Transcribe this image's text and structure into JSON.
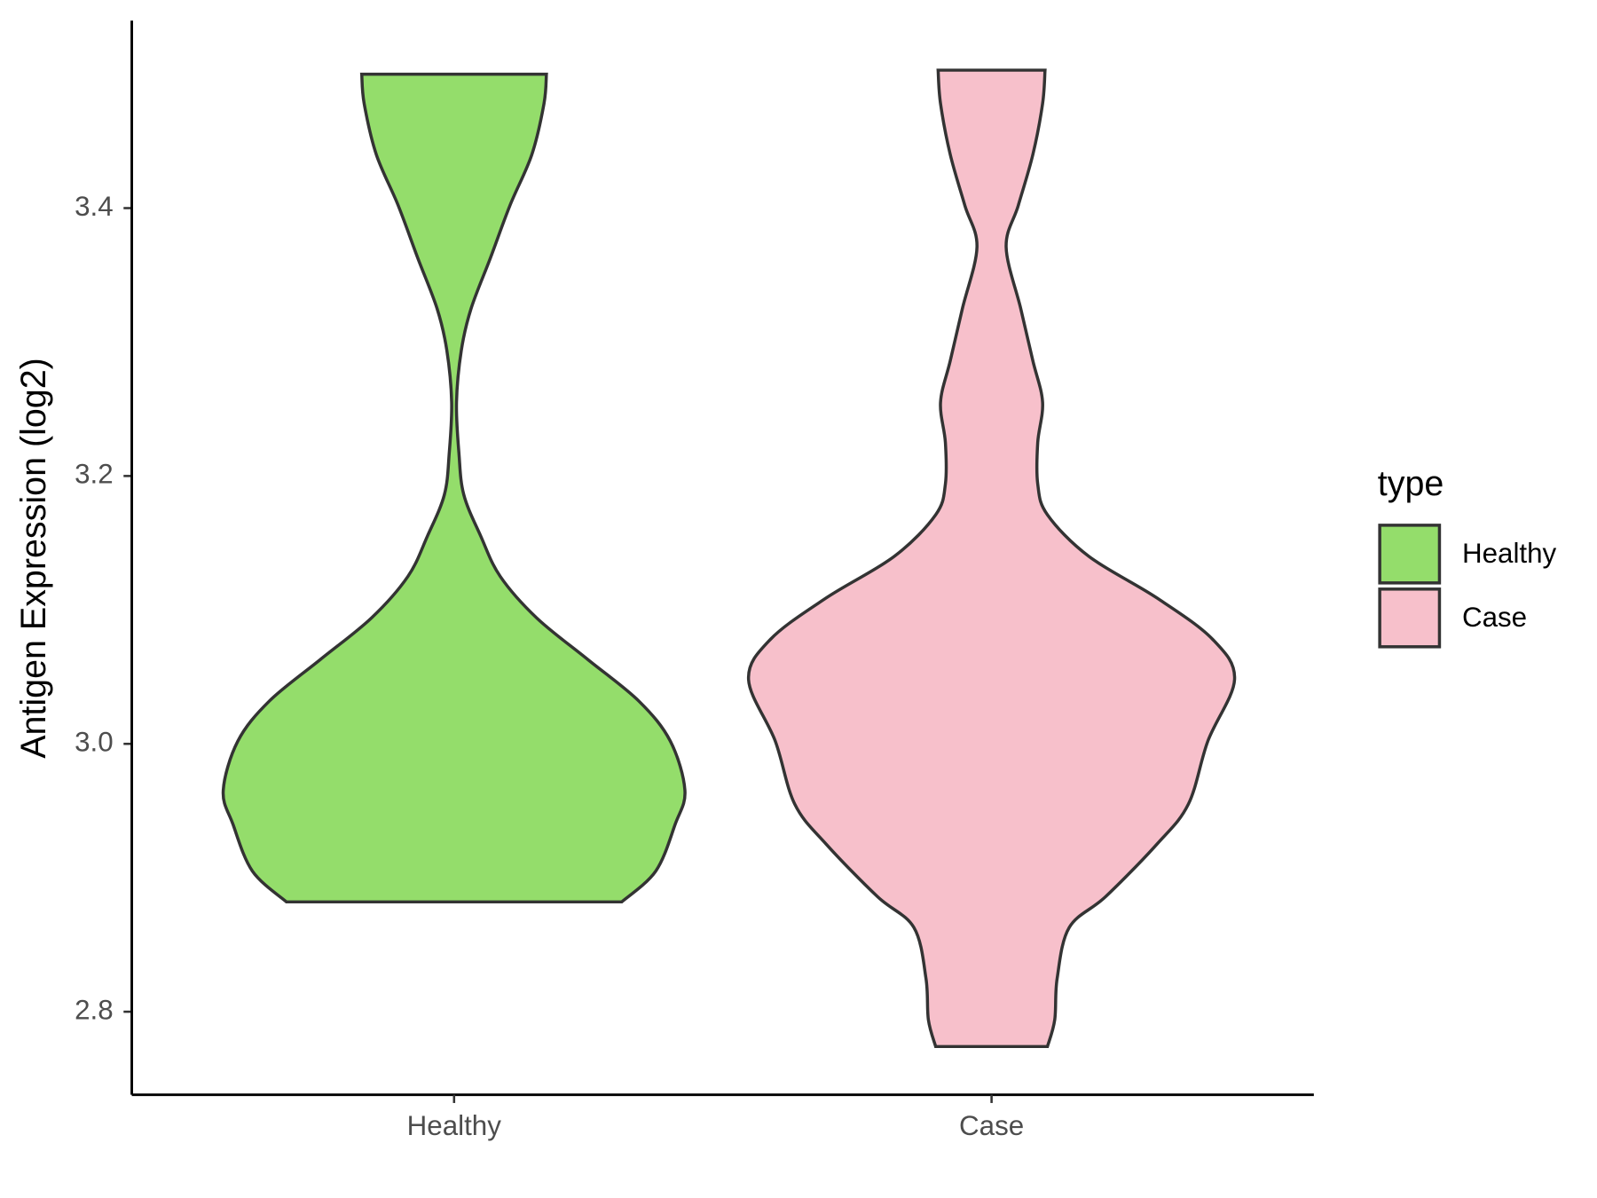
{
  "chart_data": {
    "type": "violin",
    "y_label": "Antigen Expression (log2)",
    "legend_title": "type",
    "categories": [
      "Healthy",
      "Case"
    ],
    "ylim": [
      2.738,
      3.54
    ],
    "yticks": [
      {
        "value": 2.8,
        "label": "2.8"
      },
      {
        "value": 3.0,
        "label": "3.0"
      },
      {
        "value": 3.2,
        "label": "3.2"
      },
      {
        "value": 3.4,
        "label": "3.4"
      }
    ],
    "series": [
      {
        "name": "Healthy",
        "color": "#94dd6b",
        "y": [
          2.882,
          2.905,
          2.94,
          2.965,
          3.002,
          3.032,
          3.063,
          3.094,
          3.125,
          3.155,
          3.186,
          3.217,
          3.255,
          3.294,
          3.325,
          3.363,
          3.402,
          3.44,
          3.478,
          3.5
        ],
        "density": [
          0.69,
          0.83,
          0.91,
          0.95,
          0.89,
          0.76,
          0.55,
          0.34,
          0.19,
          0.11,
          0.04,
          0.02,
          0.01,
          0.03,
          0.07,
          0.15,
          0.23,
          0.32,
          0.37,
          0.38
        ]
      },
      {
        "name": "Case",
        "color": "#f7c0cb",
        "y": [
          2.774,
          2.794,
          2.825,
          2.863,
          2.886,
          2.925,
          2.955,
          3.002,
          3.048,
          3.078,
          3.109,
          3.14,
          3.171,
          3.194,
          3.225,
          3.255,
          3.286,
          3.325,
          3.371,
          3.402,
          3.44,
          3.478,
          3.503
        ],
        "density": [
          0.23,
          0.26,
          0.27,
          0.32,
          0.47,
          0.68,
          0.81,
          0.89,
          1.0,
          0.91,
          0.68,
          0.4,
          0.23,
          0.19,
          0.19,
          0.21,
          0.17,
          0.12,
          0.06,
          0.11,
          0.17,
          0.21,
          0.22
        ]
      }
    ]
  }
}
